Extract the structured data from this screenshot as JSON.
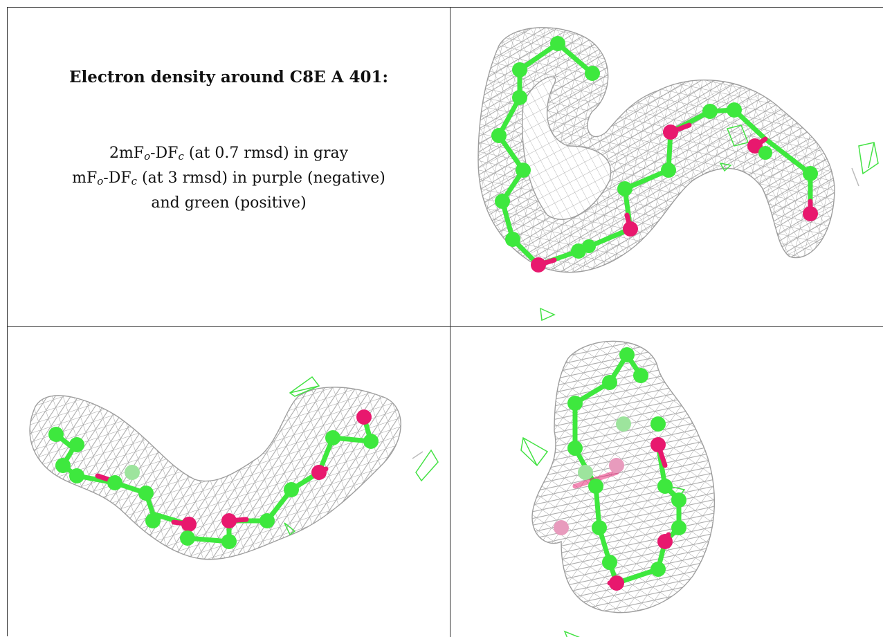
{
  "caption": {
    "title": "Electron density around C8E A 401:",
    "line1_a": "2mF",
    "line1_sub1": "o",
    "line1_b": "-DF",
    "line1_sub2": "c",
    "line1_c": " (at 0.7 rmsd) in gray",
    "line2_a": "mF",
    "line2_sub1": "o",
    "line2_b": "-DF",
    "line2_sub2": "c",
    "line2_c": " (at 3 rmsd) in purple (negative)",
    "line3": "and green (positive)"
  },
  "colors": {
    "mesh": "#9a9a9a",
    "carbon": "#3ee83e",
    "oxygen": "#e8186e",
    "positive_mesh": "#44e244",
    "border": "#333333"
  },
  "views": [
    "top-right-view",
    "bottom-left-view",
    "bottom-right-view"
  ]
}
